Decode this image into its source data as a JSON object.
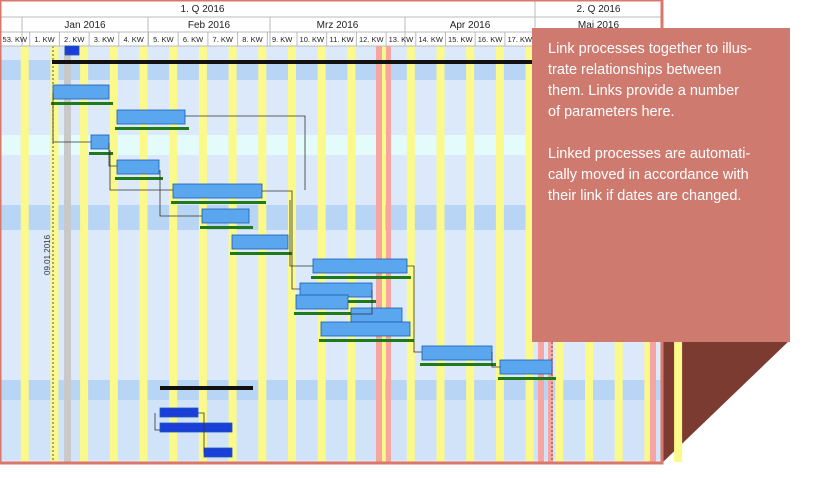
{
  "header": {
    "quarters": [
      "1. Q 2016",
      "2. Q 2016"
    ],
    "months": [
      "Jan 2016",
      "Feb 2016",
      "Mrz 2016",
      "Apr 2016",
      "Mai 2016"
    ],
    "weeks": [
      "53. KW",
      "1. KW",
      "2. KW",
      "3. KW",
      "4. KW",
      "5. KW",
      "6. KW",
      "7. KW",
      "8. KW",
      "9. KW",
      "10. KW",
      "11. KW",
      "12. KW",
      "13. KW",
      "14. KW",
      "15. KW",
      "16. KW",
      "17. KW"
    ]
  },
  "today_label": "09.01.2016",
  "callout": {
    "paragraphs": [
      [
        "Link processes together to illus-",
        "trate relationships between",
        "them. Links provide a number",
        "of parameters here."
      ],
      [
        "Linked processes are automati-",
        "cally moved in accordance with",
        "their link if dates are changed."
      ]
    ]
  }
}
